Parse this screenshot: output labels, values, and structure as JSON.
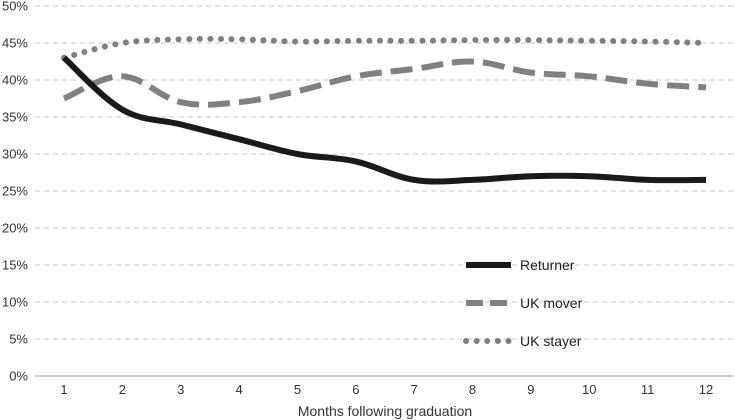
{
  "chart_data": {
    "type": "line",
    "title": "",
    "xlabel": "Months following graduation",
    "ylabel": "",
    "x": [
      1,
      2,
      3,
      4,
      5,
      6,
      7,
      8,
      9,
      10,
      11,
      12
    ],
    "ylim": [
      0,
      50
    ],
    "y_tick_values": [
      0,
      5,
      10,
      15,
      20,
      25,
      30,
      35,
      40,
      45,
      50
    ],
    "y_tick_labels": [
      "0%",
      "5%",
      "10%",
      "15%",
      "20%",
      "25%",
      "30%",
      "35%",
      "40%",
      "45%",
      "50%"
    ],
    "x_tick_labels": [
      "1",
      "2",
      "3",
      "4",
      "5",
      "6",
      "7",
      "8",
      "9",
      "10",
      "11",
      "12"
    ],
    "grid": "horizontal dashed",
    "legend_position": "lower-right",
    "series": [
      {
        "name": "Returner",
        "style": "solid",
        "color": "#1a1a1a",
        "values": [
          43,
          36,
          34,
          32,
          30,
          29,
          26.5,
          26.5,
          27,
          27,
          26.5,
          26.5
        ]
      },
      {
        "name": "UK mover",
        "style": "dashed",
        "color": "#808080",
        "values": [
          37.5,
          40.5,
          37,
          37,
          38.5,
          40.5,
          41.5,
          42.5,
          41,
          40.5,
          39.5,
          39
        ]
      },
      {
        "name": "UK stayer",
        "style": "dotted",
        "color": "#808080",
        "values": [
          43,
          45,
          45.5,
          45.5,
          45.2,
          45.3,
          45.3,
          45.4,
          45.4,
          45.3,
          45.2,
          45
        ]
      }
    ]
  }
}
